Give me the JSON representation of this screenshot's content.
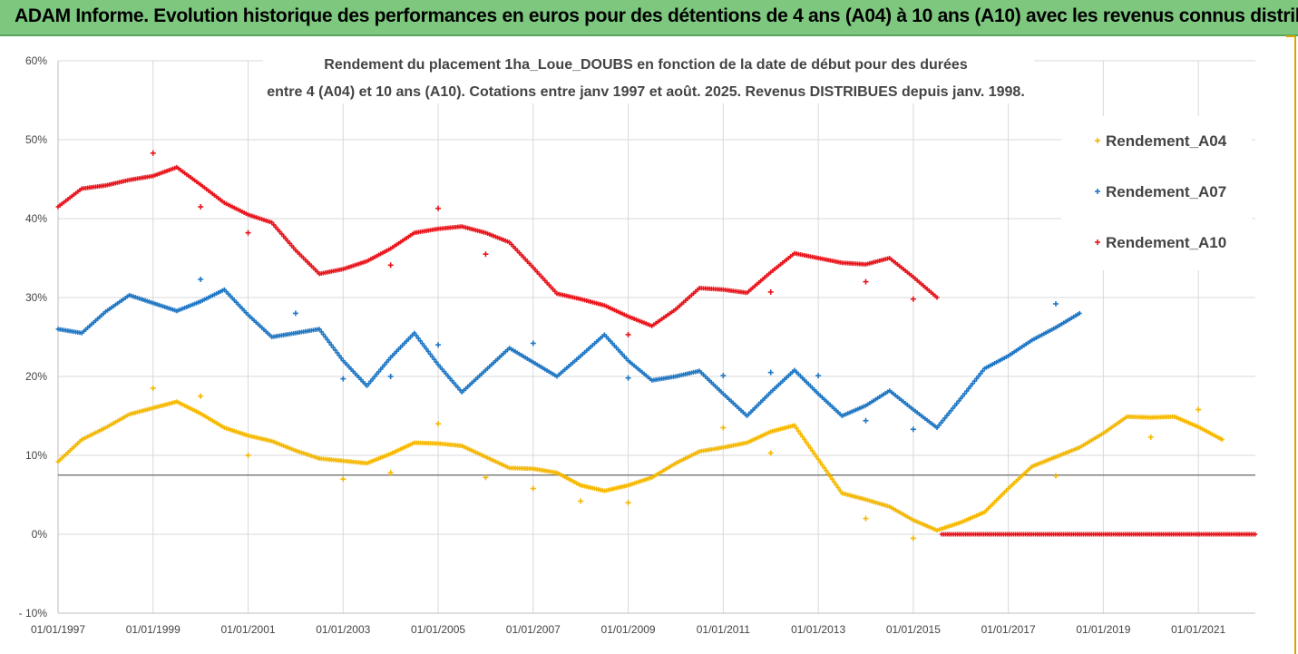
{
  "banner": {
    "title": "ADAM Informe. Evolution historique des performances en euros pour des détentions de 4 ans (A04) à 10 ans (A10) avec les revenus connus distribués"
  },
  "chart_data": {
    "type": "scatter",
    "title_lines": [
      "Rendement du placement 1ha_Loue_DOUBS en fonction de la date de début pour des durées",
      "entre 4 (A04) et 10 ans (A10). Cotations entre janv 1997 et août. 2025. Revenus DISTRIBUES depuis janv. 1998."
    ],
    "x_ticks": [
      "01/01/1997",
      "01/01/1999",
      "01/01/2001",
      "01/01/2003",
      "01/01/2005",
      "01/01/2007",
      "01/01/2009",
      "01/01/2011",
      "01/01/2013",
      "01/01/2015",
      "01/01/2017",
      "01/01/2019",
      "01/01/2021"
    ],
    "y_ticks": [
      "60%",
      "50%",
      "40%",
      "30%",
      "20%",
      "10%",
      "0%",
      "- 10%"
    ],
    "ylim": [
      -10,
      60
    ],
    "xlim": [
      1997.0,
      2022.2
    ],
    "grid": true,
    "legend_position": "right",
    "series": [
      {
        "name": "Rendement_A04",
        "color": "#f5b800",
        "points": [
          [
            1997.0,
            9.2
          ],
          [
            1997.5,
            12.0
          ],
          [
            1998.0,
            13.5
          ],
          [
            1998.5,
            15.2
          ],
          [
            1999.0,
            16.0
          ],
          [
            1999.5,
            16.8
          ],
          [
            2000.0,
            15.3
          ],
          [
            2000.5,
            13.5
          ],
          [
            2001.0,
            12.5
          ],
          [
            2001.5,
            11.8
          ],
          [
            2002.0,
            10.6
          ],
          [
            2002.5,
            9.6
          ],
          [
            2003.0,
            9.3
          ],
          [
            2003.5,
            9.0
          ],
          [
            2004.0,
            10.2
          ],
          [
            2004.5,
            11.6
          ],
          [
            2005.0,
            11.5
          ],
          [
            2005.5,
            11.2
          ],
          [
            2006.0,
            9.8
          ],
          [
            2006.5,
            8.4
          ],
          [
            2007.0,
            8.3
          ],
          [
            2007.5,
            7.8
          ],
          [
            2008.0,
            6.2
          ],
          [
            2008.5,
            5.5
          ],
          [
            2009.0,
            6.2
          ],
          [
            2009.5,
            7.2
          ],
          [
            2010.0,
            9.0
          ],
          [
            2010.5,
            10.5
          ],
          [
            2011.0,
            11.0
          ],
          [
            2011.5,
            11.6
          ],
          [
            2012.0,
            13.0
          ],
          [
            2012.5,
            13.8
          ],
          [
            2013.0,
            9.5
          ],
          [
            2013.5,
            5.2
          ],
          [
            2014.0,
            4.4
          ],
          [
            2014.5,
            3.5
          ],
          [
            2015.0,
            1.8
          ],
          [
            2015.5,
            0.5
          ],
          [
            2016.0,
            1.5
          ],
          [
            2016.5,
            2.8
          ],
          [
            2017.0,
            5.8
          ],
          [
            2017.5,
            8.6
          ],
          [
            2018.0,
            9.8
          ],
          [
            2018.5,
            11.0
          ],
          [
            2019.0,
            12.8
          ],
          [
            2019.5,
            14.9
          ],
          [
            2020.0,
            14.8
          ],
          [
            2020.5,
            14.9
          ],
          [
            2021.0,
            13.6
          ],
          [
            2021.5,
            12.0
          ]
        ],
        "outliers": [
          [
            1999.0,
            18.5
          ],
          [
            2000.0,
            17.5
          ],
          [
            2001.0,
            10.0
          ],
          [
            2003.0,
            7.0
          ],
          [
            2004.0,
            7.8
          ],
          [
            2005.0,
            14.0
          ],
          [
            2006.0,
            7.2
          ],
          [
            2007.0,
            5.8
          ],
          [
            2008.0,
            4.2
          ],
          [
            2009.0,
            4.0
          ],
          [
            2011.0,
            13.5
          ],
          [
            2012.0,
            10.3
          ],
          [
            2014.0,
            2.0
          ],
          [
            2015.0,
            -0.5
          ],
          [
            2018.0,
            7.4
          ],
          [
            2020.0,
            12.3
          ],
          [
            2021.0,
            15.8
          ]
        ]
      },
      {
        "name": "Rendement_A07",
        "color": "#1f77c4",
        "points": [
          [
            1997.0,
            26.0
          ],
          [
            1997.5,
            25.5
          ],
          [
            1998.0,
            28.2
          ],
          [
            1998.5,
            30.3
          ],
          [
            1999.0,
            29.3
          ],
          [
            1999.5,
            28.3
          ],
          [
            2000.0,
            29.5
          ],
          [
            2000.5,
            31.0
          ],
          [
            2001.0,
            27.8
          ],
          [
            2001.5,
            25.0
          ],
          [
            2002.0,
            25.5
          ],
          [
            2002.5,
            26.0
          ],
          [
            2003.0,
            22.0
          ],
          [
            2003.5,
            18.8
          ],
          [
            2004.0,
            22.4
          ],
          [
            2004.5,
            25.5
          ],
          [
            2005.0,
            21.5
          ],
          [
            2005.5,
            18.0
          ],
          [
            2006.0,
            20.8
          ],
          [
            2006.5,
            23.6
          ],
          [
            2007.0,
            21.8
          ],
          [
            2007.5,
            20.0
          ],
          [
            2008.0,
            22.6
          ],
          [
            2008.5,
            25.3
          ],
          [
            2009.0,
            22.0
          ],
          [
            2009.5,
            19.5
          ],
          [
            2010.0,
            20.0
          ],
          [
            2010.5,
            20.7
          ],
          [
            2011.0,
            17.8
          ],
          [
            2011.5,
            15.0
          ],
          [
            2012.0,
            18.0
          ],
          [
            2012.5,
            20.8
          ],
          [
            2013.0,
            17.8
          ],
          [
            2013.5,
            15.0
          ],
          [
            2014.0,
            16.3
          ],
          [
            2014.5,
            18.2
          ],
          [
            2015.0,
            15.8
          ],
          [
            2015.5,
            13.5
          ],
          [
            2016.0,
            17.2
          ],
          [
            2016.5,
            21.0
          ],
          [
            2017.0,
            22.6
          ],
          [
            2017.5,
            24.6
          ],
          [
            2018.0,
            26.2
          ],
          [
            2018.5,
            28.0
          ]
        ],
        "outliers": [
          [
            2000.0,
            32.3
          ],
          [
            2002.0,
            28.0
          ],
          [
            2003.0,
            19.7
          ],
          [
            2004.0,
            20.0
          ],
          [
            2005.0,
            24.0
          ],
          [
            2007.0,
            24.2
          ],
          [
            2009.0,
            19.8
          ],
          [
            2011.0,
            20.1
          ],
          [
            2012.0,
            20.5
          ],
          [
            2013.0,
            20.1
          ],
          [
            2014.0,
            14.4
          ],
          [
            2015.0,
            13.3
          ],
          [
            2018.0,
            29.2
          ]
        ]
      },
      {
        "name": "Rendement_A10",
        "color": "#e8141b",
        "points": [
          [
            1997.0,
            41.5
          ],
          [
            1997.5,
            43.8
          ],
          [
            1998.0,
            44.2
          ],
          [
            1998.5,
            44.9
          ],
          [
            1999.0,
            45.4
          ],
          [
            1999.5,
            46.5
          ],
          [
            2000.0,
            44.3
          ],
          [
            2000.5,
            42.0
          ],
          [
            2001.0,
            40.5
          ],
          [
            2001.5,
            39.5
          ],
          [
            2002.0,
            36.0
          ],
          [
            2002.5,
            33.0
          ],
          [
            2003.0,
            33.6
          ],
          [
            2003.5,
            34.6
          ],
          [
            2004.0,
            36.2
          ],
          [
            2004.5,
            38.2
          ],
          [
            2005.0,
            38.7
          ],
          [
            2005.5,
            39.0
          ],
          [
            2006.0,
            38.2
          ],
          [
            2006.5,
            37.0
          ],
          [
            2007.0,
            33.8
          ],
          [
            2007.5,
            30.5
          ],
          [
            2008.0,
            29.8
          ],
          [
            2008.5,
            29.0
          ],
          [
            2009.0,
            27.6
          ],
          [
            2009.5,
            26.4
          ],
          [
            2010.0,
            28.5
          ],
          [
            2010.5,
            31.2
          ],
          [
            2011.0,
            31.0
          ],
          [
            2011.5,
            30.6
          ],
          [
            2012.0,
            33.2
          ],
          [
            2012.5,
            35.6
          ],
          [
            2013.0,
            35.0
          ],
          [
            2013.5,
            34.4
          ],
          [
            2014.0,
            34.2
          ],
          [
            2014.5,
            35.0
          ],
          [
            2015.0,
            32.6
          ],
          [
            2015.5,
            30.0
          ]
        ],
        "outliers": [
          [
            1999.0,
            48.3
          ],
          [
            2000.0,
            41.5
          ],
          [
            2001.0,
            38.2
          ],
          [
            2004.0,
            34.1
          ],
          [
            2005.0,
            41.3
          ],
          [
            2006.0,
            35.5
          ],
          [
            2009.0,
            25.3
          ],
          [
            2012.0,
            30.7
          ],
          [
            2014.0,
            32.0
          ],
          [
            2015.0,
            29.8
          ]
        ],
        "zero_range": [
          2015.6,
          2022.2
        ]
      }
    ],
    "reference_line": 7.5
  }
}
